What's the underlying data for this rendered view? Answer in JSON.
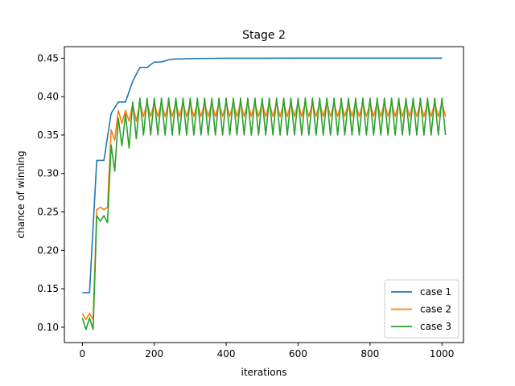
{
  "chart_data": {
    "type": "line",
    "title": "Stage 2",
    "xlabel": "iterations",
    "ylabel": "chance of winning",
    "xlim": [
      -50,
      1060
    ],
    "ylim": [
      0.08,
      0.465
    ],
    "xticks": [
      0,
      200,
      400,
      600,
      800,
      1000
    ],
    "yticks": [
      0.1,
      0.15,
      0.2,
      0.25,
      0.3,
      0.35,
      0.4,
      0.45
    ],
    "xtick_labels": [
      "0",
      "200",
      "400",
      "600",
      "800",
      "1000"
    ],
    "ytick_labels": [
      "0.10",
      "0.15",
      "0.20",
      "0.25",
      "0.30",
      "0.35",
      "0.40",
      "0.45"
    ],
    "grid": false,
    "legend_position": "lower right",
    "series": [
      {
        "name": "case 1",
        "color": "#1f77b4",
        "x": [
          0,
          20,
          40,
          60,
          80,
          100,
          120,
          140,
          160,
          180,
          200,
          220,
          240,
          260,
          280,
          300,
          350,
          400,
          500,
          600,
          700,
          800,
          900,
          1000
        ],
        "y": [
          0.145,
          0.145,
          0.317,
          0.317,
          0.378,
          0.393,
          0.393,
          0.42,
          0.438,
          0.438,
          0.445,
          0.445,
          0.448,
          0.449,
          0.449,
          0.4495,
          0.4497,
          0.4499,
          0.4499,
          0.45,
          0.45,
          0.45,
          0.45,
          0.45
        ]
      },
      {
        "name": "case 2",
        "color": "#ff7f0e",
        "pattern": {
          "x": [
            0,
            10,
            20,
            30,
            40,
            50,
            60,
            70,
            80,
            90,
            100,
            110,
            120,
            130,
            140,
            150
          ],
          "y": [
            0.118,
            0.11,
            0.118,
            0.11,
            0.253,
            0.256,
            0.253,
            0.256,
            0.357,
            0.343,
            0.382,
            0.365,
            0.382,
            0.368,
            0.39,
            0.368
          ],
          "cycle_from": 160,
          "cycle_to": 1010,
          "step": 10,
          "high": 0.392,
          "low": 0.374
        }
      },
      {
        "name": "case 3",
        "color": "#2ca02c",
        "pattern": {
          "x": [
            0,
            10,
            20,
            30,
            40,
            50,
            60,
            70,
            80,
            90,
            100,
            110,
            120,
            130,
            140,
            150
          ],
          "y": [
            0.112,
            0.097,
            0.112,
            0.097,
            0.245,
            0.238,
            0.245,
            0.236,
            0.337,
            0.303,
            0.372,
            0.336,
            0.377,
            0.333,
            0.393,
            0.345
          ],
          "cycle_from": 160,
          "cycle_to": 1010,
          "step": 10,
          "high": 0.398,
          "low": 0.35
        }
      }
    ]
  }
}
